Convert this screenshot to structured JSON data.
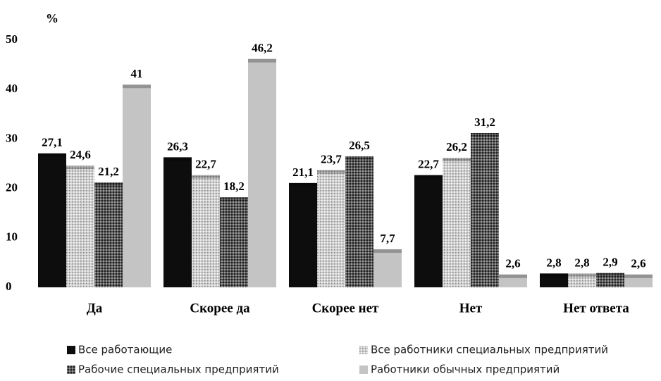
{
  "chart_data": {
    "type": "bar",
    "ylabel": "%",
    "categories": [
      "Да",
      "Скорее да",
      "Скорее нет",
      "Нет",
      "Нет ответа"
    ],
    "series": [
      {
        "name": "Все работающие",
        "color": "#0d0d0d",
        "values": [
          27.1,
          26.3,
          21.1,
          22.7,
          2.8
        ],
        "value_labels": [
          "27,1",
          "26,3",
          "21,1",
          "22,7",
          "2,8"
        ]
      },
      {
        "name": "Все работники специальных предприятий",
        "color": "#d0d0d0",
        "values": [
          24.6,
          22.7,
          23.7,
          26.2,
          2.8
        ],
        "value_labels": [
          "24,6",
          "22,7",
          "23,7",
          "26,2",
          "2,8"
        ]
      },
      {
        "name": "Рабочие специальных предприятий",
        "color": "#5a5a5a",
        "values": [
          21.2,
          18.2,
          26.5,
          31.2,
          2.9
        ],
        "value_labels": [
          "21,2",
          "18,2",
          "26,5",
          "31,2",
          "2,9"
        ]
      },
      {
        "name": "Работники обычных предприятий",
        "color": "#c4c4c4",
        "values": [
          41,
          46.2,
          7.7,
          2.6,
          2.6
        ],
        "value_labels": [
          "41",
          "46,2",
          "7,7",
          "2,6",
          "2,6"
        ]
      }
    ],
    "ylim": [
      0,
      50
    ],
    "yticks": [
      0,
      10,
      20,
      30,
      40,
      50
    ],
    "grid": false
  }
}
